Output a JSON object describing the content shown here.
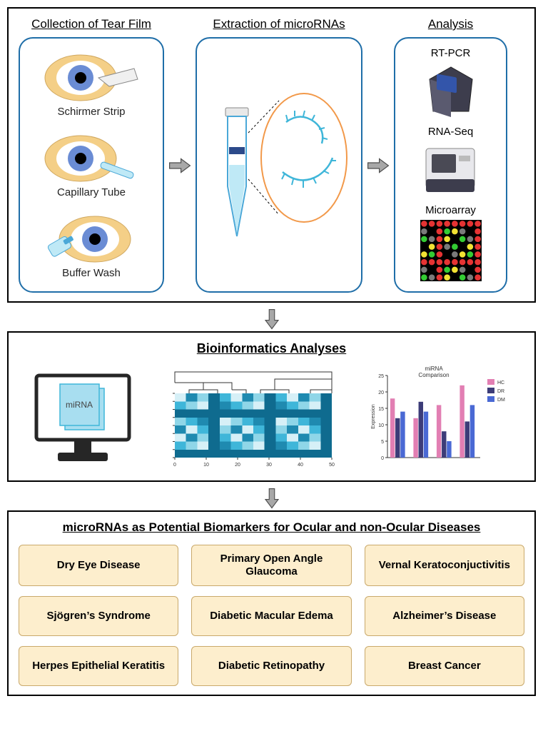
{
  "colors": {
    "panel_border": "#000000",
    "rounded_border": "#1f6ea8",
    "arrow_fill": "#a8a8a8",
    "arrow_stroke": "#4d4d4d",
    "eye_skin": "#f4cf87",
    "eye_iris": "#6a8cd4",
    "eye_pupil": "#000000",
    "tube_fill": "#bfe9f6",
    "tube_stroke": "#4aa8d8",
    "rna_stroke": "#3fb6d9",
    "rna_circle": "#f2994a",
    "dis_box_bg": "#fdeecd",
    "dis_box_border": "#c9a96b",
    "monitor_stroke": "#262626",
    "doc_fill": "#a8def0",
    "heatmap_shades": [
      "#d6f0f7",
      "#8fd6e8",
      "#3fb6d9",
      "#1f8ab0",
      "#0f6b8f"
    ],
    "bar_pink": "#e27fb3",
    "bar_dark": "#3c3c78",
    "bar_blue": "#4a69d4",
    "microarray_colors": [
      "#e63333",
      "#33cc33",
      "#f2e233",
      "#7a7a7a",
      "#000000"
    ]
  },
  "top": {
    "collection": {
      "title": "Collection of Tear Film",
      "methods": [
        {
          "label": "Schirmer Strip"
        },
        {
          "label": "Capillary Tube"
        },
        {
          "label": "Buffer Wash"
        }
      ]
    },
    "extraction": {
      "title": "Extraction of microRNAs"
    },
    "analysis": {
      "title": "Analysis",
      "methods": [
        {
          "label": "RT-PCR"
        },
        {
          "label": "RNA-Seq"
        },
        {
          "label": "Microarray"
        }
      ]
    }
  },
  "bioinformatics": {
    "title": "Bioinformatics Analyses",
    "monitor_label": "miRNA",
    "heatmap": {
      "rows": 8,
      "cols": 14,
      "x_max": 50,
      "x_ticks": [
        0,
        10,
        20,
        30,
        40,
        50
      ]
    },
    "barchart": {
      "title": "miRNA\nComparison",
      "legend": [
        {
          "label": "HC",
          "color": "#e27fb3"
        },
        {
          "label": "DR",
          "color": "#3c3c78"
        },
        {
          "label": "DM",
          "color": "#4a69d4"
        }
      ],
      "ylabel": "Expression",
      "y_max": 25,
      "y_ticks": [
        0,
        5,
        10,
        15,
        20,
        25
      ],
      "groups": [
        {
          "values": [
            18,
            12,
            14
          ]
        },
        {
          "values": [
            12,
            17,
            14
          ]
        },
        {
          "values": [
            16,
            8,
            5
          ]
        },
        {
          "values": [
            22,
            11,
            16
          ]
        }
      ]
    }
  },
  "diseases": {
    "title": "microRNAs as Potential Biomarkers for Ocular and non-Ocular Diseases",
    "items": [
      "Dry Eye Disease",
      "Primary Open Angle Glaucoma",
      "Vernal Keratoconjuctivitis",
      "Sjögren’s Syndrome",
      "Diabetic Macular Edema",
      "Alzheimer’s Disease",
      "Herpes Epithelial Keratitis",
      "Diabetic Retinopathy",
      "Breast Cancer"
    ]
  }
}
